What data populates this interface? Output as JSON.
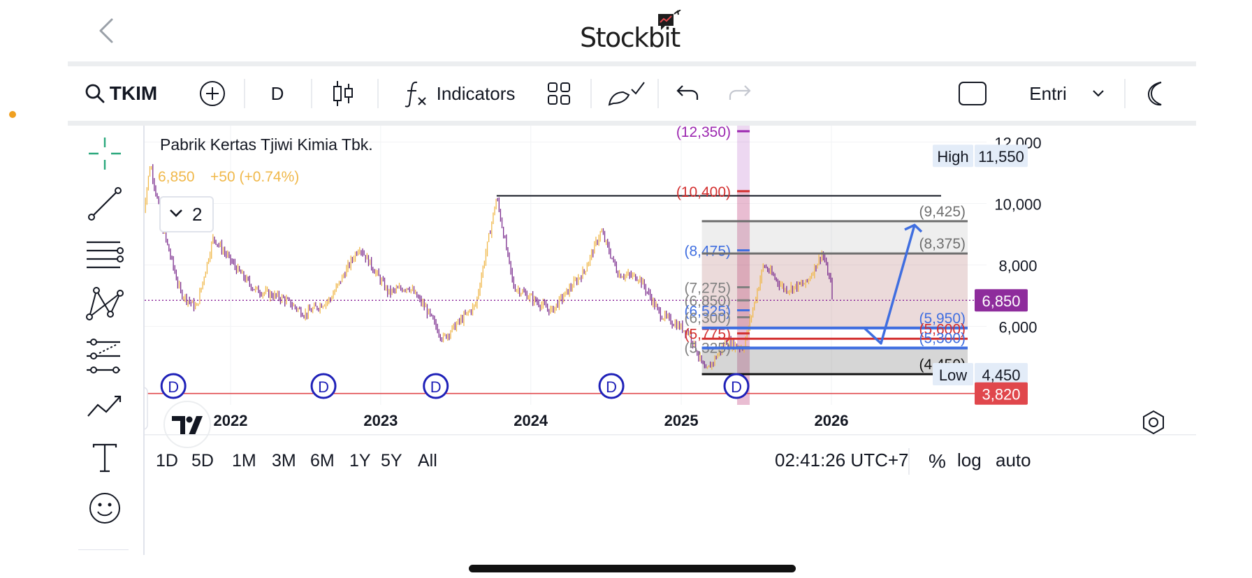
{
  "header": {
    "logo_text": "Stockbit"
  },
  "toolbar": {
    "symbol": "TKIM",
    "interval": "D",
    "indicators_label": "Indicators",
    "entry_label": "Entri"
  },
  "icons": [
    "back-icon",
    "search-icon",
    "add-symbol-icon",
    "candles-icon",
    "function-icon",
    "layout-icon",
    "drawing-icon",
    "undo-icon",
    "redo-icon",
    "square-icon",
    "chevron-down-icon",
    "moon-icon",
    "crosshair-icon",
    "trend-line-icon",
    "fib-icon",
    "pattern-icon",
    "prediction-icon",
    "brush-icon",
    "text-icon",
    "emoji-icon",
    "tradingview-logo",
    "settings-icon"
  ],
  "legend": {
    "title": "Pabrik Kertas Tjiwi Kimia Tbk.",
    "price": "6,850",
    "change": "+50 (+0.74%)",
    "collapse_count": "2"
  },
  "chart_data": {
    "type": "candlestick",
    "price_axis_ticks": [
      "12,000",
      "10,000",
      "8,000",
      "6,000"
    ],
    "time_axis_ticks": [
      "2022",
      "2023",
      "2024",
      "2025",
      "2026"
    ],
    "ylim": [
      3700,
      12400
    ],
    "price_line_labels": [
      {
        "name": "High",
        "value": "11,550"
      },
      {
        "name": "Low",
        "value": "4,450"
      }
    ],
    "last_price_label": "6,850",
    "alert_price_label": "3,820",
    "dividend_marker": "D",
    "dividend_markers": [
      "2021-08",
      "2022-08",
      "2023-05",
      "2024-07",
      "2025-05"
    ],
    "series_polyline": [
      [
        "2021-06-01",
        9500
      ],
      [
        "2021-06-20",
        11300
      ],
      [
        "2021-07-20",
        9200
      ],
      [
        "2021-09-01",
        7100
      ],
      [
        "2021-10-10",
        6600
      ],
      [
        "2021-11-20",
        8900
      ],
      [
        "2022-01-20",
        7800
      ],
      [
        "2022-03-01",
        7200
      ],
      [
        "2022-05-10",
        6900
      ],
      [
        "2022-07-01",
        6400
      ],
      [
        "2022-09-01",
        6900
      ],
      [
        "2022-11-10",
        8600
      ],
      [
        "2023-01-20",
        7100
      ],
      [
        "2023-03-10",
        7300
      ],
      [
        "2023-04-20",
        6600
      ],
      [
        "2023-06-01",
        5600
      ],
      [
        "2023-08-20",
        6700
      ],
      [
        "2023-10-10",
        10200
      ],
      [
        "2023-11-20",
        7300
      ],
      [
        "2024-02-20",
        6500
      ],
      [
        "2024-05-10",
        7800
      ],
      [
        "2024-06-20",
        9100
      ],
      [
        "2024-08-01",
        7700
      ],
      [
        "2024-09-20",
        7600
      ],
      [
        "2024-11-10",
        6400
      ],
      [
        "2025-01-20",
        5800
      ],
      [
        "2025-03-01",
        4500
      ],
      [
        "2025-04-20",
        5500
      ],
      [
        "2025-06-01",
        5300
      ],
      [
        "2025-07-20",
        8000
      ],
      [
        "2025-09-10",
        7200
      ],
      [
        "2025-11-01",
        7400
      ],
      [
        "2025-12-10",
        8400
      ],
      [
        "2026-01-01",
        7300
      ],
      [
        "2026-01-05",
        6850
      ]
    ],
    "horizontal_ray": {
      "start": "2023-10-10",
      "value": 10250
    },
    "fib_levels": [
      {
        "value": 12350,
        "label": "(12,350)",
        "color": "#9c27b0"
      },
      {
        "value": 10400,
        "label": "(10,400)",
        "color": "#d32f2f"
      },
      {
        "value": 8475,
        "label": "(8,475)",
        "color": "#3f6ee0"
      },
      {
        "value": 7275,
        "label": "(7,275)",
        "color": "#808080"
      },
      {
        "value": 6850,
        "label": "(6,850)",
        "color": "#808080"
      },
      {
        "value": 6525,
        "label": "(6,525)",
        "color": "#3f6ee0"
      },
      {
        "value": 6300,
        "label": "(6,300)",
        "color": "#808080"
      },
      {
        "value": 5775,
        "label": "(5,775)",
        "color": "#d32f2f"
      },
      {
        "value": 5325,
        "label": "(5,325)",
        "color": "#808080"
      }
    ],
    "position_levels": [
      {
        "value": 9425,
        "label": "(9,425)",
        "color": "#6e6e6e"
      },
      {
        "value": 8375,
        "label": "(8,375)",
        "color": "#6e6e6e"
      },
      {
        "value": 5950,
        "label": "(5,950)",
        "color": "#3f6ee0"
      },
      {
        "value": 5600,
        "label": "(5,600)",
        "color": "#d32f2f"
      },
      {
        "value": 5300,
        "label": "(5,300)",
        "color": "#3f6ee0"
      },
      {
        "value": 4450,
        "label": "(4,450)",
        "color": "#111111"
      }
    ]
  },
  "bottom": {
    "ranges": [
      "1D",
      "5D",
      "1M",
      "3M",
      "6M",
      "1Y",
      "5Y",
      "All"
    ],
    "clock": "02:41:26 UTC+7",
    "percent": "%",
    "log": "log",
    "auto": "auto"
  },
  "colors": {
    "candle_up": "#f0b84a",
    "candle_down": "#7b2d8e",
    "alert": "#e0474c",
    "last_price": "#8e2c9c",
    "dividend": "#1f21b8",
    "arrow": "#3f6ee0"
  }
}
